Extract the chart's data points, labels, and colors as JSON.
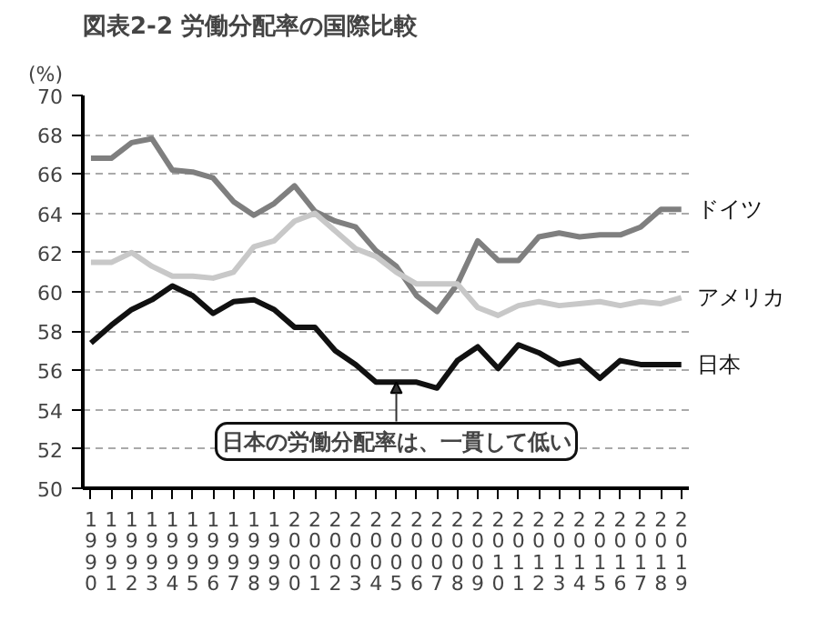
{
  "chart_data": {
    "type": "line",
    "title": "図表2-2 労働分配率の国際比較",
    "ylabel": "(%)",
    "x": [
      1990,
      1991,
      1992,
      1993,
      1994,
      1995,
      1996,
      1997,
      1998,
      1999,
      2000,
      2001,
      2002,
      2003,
      2004,
      2005,
      2006,
      2007,
      2008,
      2009,
      2010,
      2011,
      2012,
      2013,
      2014,
      2015,
      2016,
      2017,
      2018,
      2019
    ],
    "series": [
      {
        "name": "ドイツ",
        "color": "#7f7f7f",
        "values": [
          66.8,
          66.8,
          67.6,
          67.8,
          66.2,
          66.1,
          65.8,
          64.6,
          63.9,
          64.5,
          65.4,
          64.1,
          63.6,
          63.3,
          62.1,
          61.3,
          59.8,
          59.0,
          60.4,
          62.6,
          61.6,
          61.6,
          62.8,
          63.0,
          62.8,
          62.9,
          62.9,
          63.3,
          64.2,
          64.2
        ]
      },
      {
        "name": "アメリカ",
        "color": "#c8c8c8",
        "values": [
          61.5,
          61.5,
          62.0,
          61.3,
          60.8,
          60.8,
          60.7,
          61.0,
          62.3,
          62.6,
          63.6,
          64.0,
          63.1,
          62.2,
          61.8,
          61.0,
          60.4,
          60.4,
          60.4,
          59.2,
          58.8,
          59.3,
          59.5,
          59.3,
          59.4,
          59.5,
          59.3,
          59.5,
          59.4,
          59.7
        ]
      },
      {
        "name": "日本",
        "color": "#111111",
        "values": [
          57.4,
          58.3,
          59.1,
          59.6,
          60.3,
          59.8,
          58.9,
          59.5,
          59.6,
          59.1,
          58.2,
          58.2,
          57.0,
          56.3,
          55.4,
          55.4,
          55.4,
          55.1,
          56.5,
          57.2,
          56.1,
          57.3,
          56.9,
          56.3,
          56.5,
          55.6,
          56.5,
          56.3,
          56.3,
          56.3
        ]
      }
    ],
    "xlim": [
      1989.6,
      2019.4
    ],
    "xticks": [
      1990,
      1991,
      1992,
      1993,
      1994,
      1995,
      1996,
      1997,
      1998,
      1999,
      2000,
      2001,
      2002,
      2003,
      2004,
      2005,
      2006,
      2007,
      2008,
      2009,
      2010,
      2011,
      2012,
      2013,
      2014,
      2015,
      2016,
      2017,
      2018,
      2019
    ],
    "ylim": [
      50,
      70
    ],
    "yticks": [
      50,
      52,
      54,
      56,
      58,
      60,
      62,
      64,
      66,
      68,
      70
    ],
    "grid": "y",
    "marker": "none",
    "line_style": "solid",
    "annotations": [
      {
        "text": "日本の労働分配率は、一貫して低い",
        "x": 2005,
        "y": 55.4
      }
    ]
  }
}
